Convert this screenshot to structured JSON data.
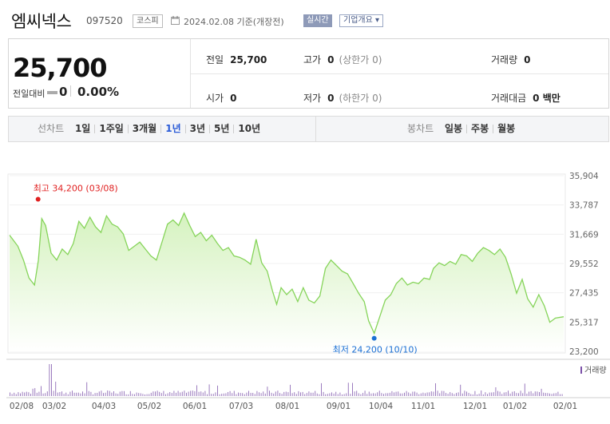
{
  "header": {
    "name": "엠씨넥스",
    "code": "097520",
    "market": "코스피",
    "date": "2024.02.08 기준(개장전)",
    "realtime_badge": "실시간",
    "overview_button": "기업개요 ▾"
  },
  "summary": {
    "price": "25,700",
    "change_label": "전일대비",
    "change_value": "0",
    "change_pct": "0.00%",
    "prev_label": "전일",
    "prev_value": "25,700",
    "high_label": "고가",
    "high_value": "0",
    "high_sub": "(상한가 0)",
    "volume_label": "거래량",
    "volume_value": "0",
    "open_label": "시가",
    "open_value": "0",
    "low_label": "저가",
    "low_value": "0",
    "low_sub": "(하한가 0)",
    "amount_label": "거래대금",
    "amount_value": "0 백만"
  },
  "tabs": {
    "line_label": "선차트",
    "line_items": [
      "1일",
      "1주일",
      "3개월",
      "1년",
      "3년",
      "5년",
      "10년"
    ],
    "active_line": "1년",
    "candle_label": "봉차트",
    "candle_items": [
      "일봉",
      "주봉",
      "월봉"
    ]
  },
  "colors": {
    "line": "#86d45a",
    "fill_top": "#d5f2bf",
    "fill_bottom": "#ffffff",
    "max_marker": "#e02020",
    "min_marker": "#1a6fd4",
    "volume": "#7a4fa8"
  },
  "chart_data": {
    "type": "area",
    "y_ticks": [
      "35,904",
      "33,787",
      "31,669",
      "29,552",
      "27,435",
      "25,317",
      "23,200"
    ],
    "ylim": [
      23200,
      35904
    ],
    "x_ticks": [
      "02/08",
      "03/02",
      "04/03",
      "05/02",
      "06/01",
      "07/03",
      "08/01",
      "09/01",
      "10/04",
      "11/01",
      "12/01",
      "01/02",
      "02/01"
    ],
    "max_label": "최고 34,200 (03/08)",
    "min_label": "최저 24,200 (10/10)",
    "volume_legend": "거래량",
    "max_point": [
      0.05,
      34200
    ],
    "min_point": [
      0.658,
      24200
    ],
    "series": [
      {
        "values": [
          [
            0.0,
            31600
          ],
          [
            0.015,
            30800
          ],
          [
            0.025,
            29800
          ],
          [
            0.035,
            28500
          ],
          [
            0.045,
            28000
          ],
          [
            0.052,
            29800
          ],
          [
            0.058,
            32800
          ],
          [
            0.065,
            32300
          ],
          [
            0.075,
            30300
          ],
          [
            0.085,
            29800
          ],
          [
            0.095,
            30600
          ],
          [
            0.105,
            30200
          ],
          [
            0.115,
            31000
          ],
          [
            0.125,
            32600
          ],
          [
            0.135,
            32100
          ],
          [
            0.145,
            32900
          ],
          [
            0.155,
            32200
          ],
          [
            0.165,
            31800
          ],
          [
            0.175,
            33000
          ],
          [
            0.185,
            32400
          ],
          [
            0.195,
            32200
          ],
          [
            0.205,
            31700
          ],
          [
            0.215,
            30500
          ],
          [
            0.225,
            30800
          ],
          [
            0.235,
            31100
          ],
          [
            0.245,
            30600
          ],
          [
            0.255,
            30100
          ],
          [
            0.265,
            29800
          ],
          [
            0.275,
            31100
          ],
          [
            0.285,
            32400
          ],
          [
            0.295,
            32700
          ],
          [
            0.305,
            32300
          ],
          [
            0.315,
            33200
          ],
          [
            0.325,
            32300
          ],
          [
            0.335,
            31500
          ],
          [
            0.345,
            31800
          ],
          [
            0.355,
            31200
          ],
          [
            0.365,
            31600
          ],
          [
            0.375,
            31000
          ],
          [
            0.385,
            30500
          ],
          [
            0.395,
            30700
          ],
          [
            0.405,
            30100
          ],
          [
            0.415,
            30000
          ],
          [
            0.425,
            29800
          ],
          [
            0.435,
            29500
          ],
          [
            0.445,
            31300
          ],
          [
            0.455,
            29600
          ],
          [
            0.465,
            29000
          ],
          [
            0.475,
            27500
          ],
          [
            0.482,
            26600
          ],
          [
            0.49,
            27800
          ],
          [
            0.5,
            27300
          ],
          [
            0.51,
            27700
          ],
          [
            0.52,
            26800
          ],
          [
            0.53,
            27800
          ],
          [
            0.54,
            26900
          ],
          [
            0.55,
            26700
          ],
          [
            0.56,
            27200
          ],
          [
            0.57,
            29200
          ],
          [
            0.58,
            29800
          ],
          [
            0.59,
            29400
          ],
          [
            0.6,
            29000
          ],
          [
            0.61,
            28800
          ],
          [
            0.62,
            28100
          ],
          [
            0.63,
            27400
          ],
          [
            0.64,
            26800
          ],
          [
            0.648,
            25400
          ],
          [
            0.658,
            24500
          ],
          [
            0.668,
            25700
          ],
          [
            0.678,
            26900
          ],
          [
            0.688,
            27300
          ],
          [
            0.698,
            28100
          ],
          [
            0.708,
            28500
          ],
          [
            0.718,
            28000
          ],
          [
            0.728,
            28200
          ],
          [
            0.738,
            28100
          ],
          [
            0.748,
            28500
          ],
          [
            0.758,
            28400
          ],
          [
            0.765,
            29200
          ],
          [
            0.775,
            29600
          ],
          [
            0.785,
            29400
          ],
          [
            0.795,
            29700
          ],
          [
            0.805,
            29500
          ],
          [
            0.815,
            30200
          ],
          [
            0.825,
            30100
          ],
          [
            0.835,
            29700
          ],
          [
            0.845,
            30300
          ],
          [
            0.855,
            30700
          ],
          [
            0.865,
            30500
          ],
          [
            0.875,
            30200
          ],
          [
            0.885,
            30600
          ],
          [
            0.895,
            30000
          ],
          [
            0.905,
            28800
          ],
          [
            0.915,
            27400
          ],
          [
            0.925,
            28400
          ],
          [
            0.935,
            27000
          ],
          [
            0.945,
            26400
          ],
          [
            0.955,
            27300
          ],
          [
            0.965,
            26500
          ],
          [
            0.975,
            25300
          ],
          [
            0.985,
            25600
          ],
          [
            1.0,
            25700
          ]
        ]
      }
    ]
  }
}
